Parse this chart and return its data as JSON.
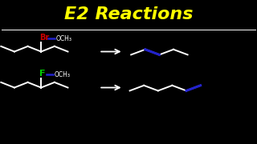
{
  "title": "E2 Reactions",
  "title_color": "#FFFF00",
  "title_fontsize": 16,
  "bg_color": "#000000",
  "br_label": "Br",
  "br_color": "#CC0000",
  "f_label": "F",
  "f_color": "#00CC00",
  "och3_label": "OCH₃",
  "och3_color": "#FFFFFF",
  "arrow_color": "#FFFFFF",
  "highlight_color": "#2222CC",
  "line_color": "#FFFFFF",
  "line_width": 1.4
}
